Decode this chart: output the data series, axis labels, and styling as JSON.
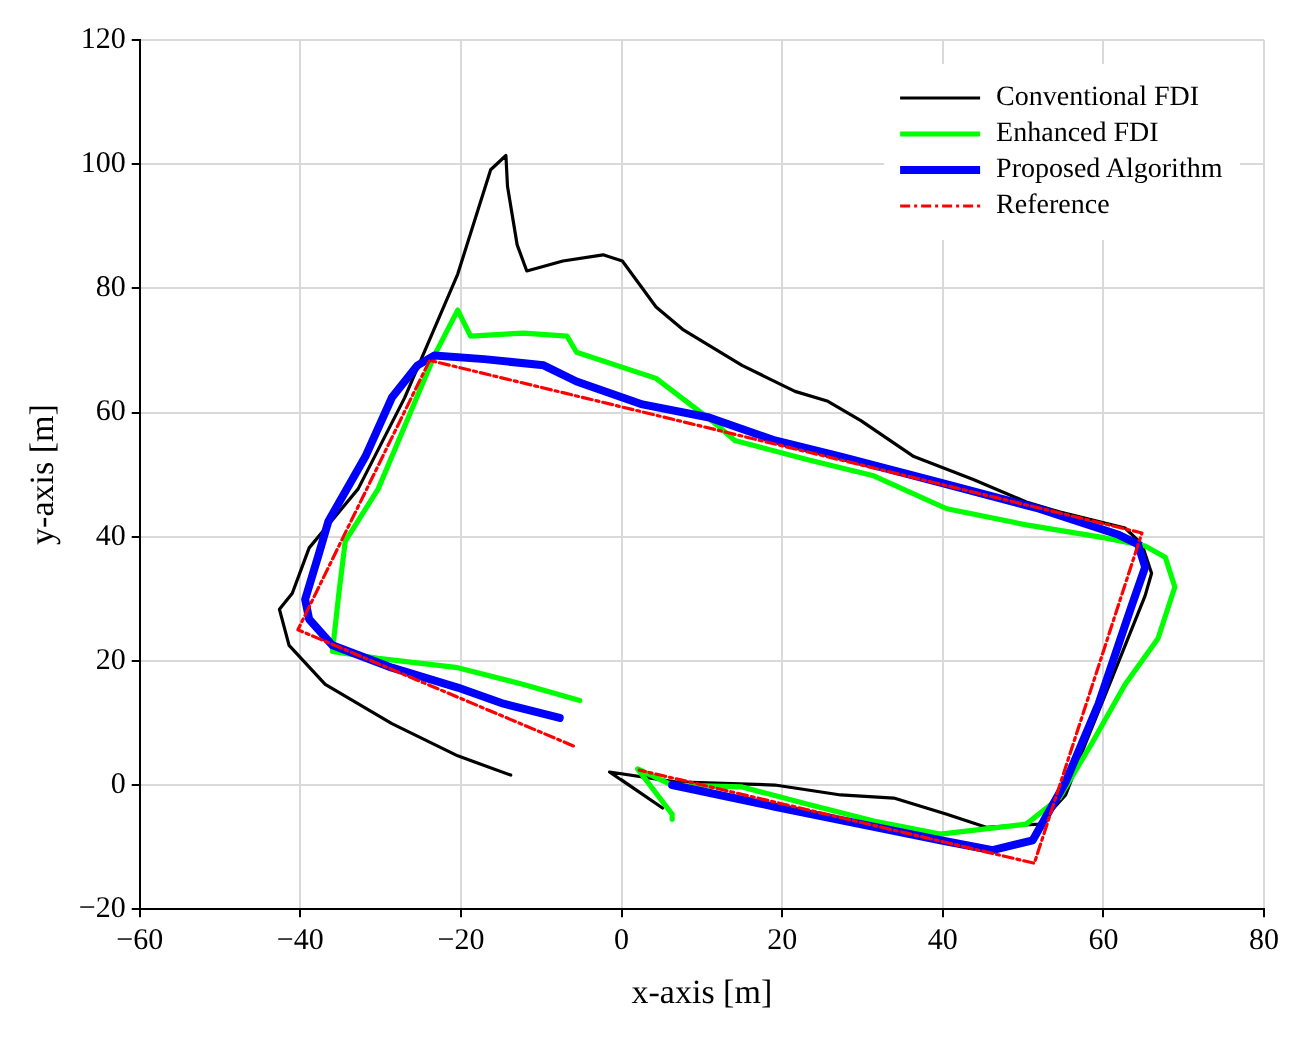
{
  "chart_data": {
    "type": "line",
    "xlabel": "x-axis [m]",
    "ylabel": "y-axis [m]",
    "xlim": [
      -60,
      80
    ],
    "xticks": [
      -60,
      -40,
      -20,
      0,
      20,
      40,
      60,
      80
    ],
    "ylim": [
      -20,
      120
    ],
    "yticks": [
      -20,
      0,
      20,
      40,
      60,
      80,
      100,
      120
    ],
    "grid": true,
    "legend": "top right",
    "marker": "none",
    "series": [
      {
        "name": "Conventional FDI",
        "color": "#000000",
        "line_style": "solid",
        "x": [
          -13.8,
          -20.4,
          -28.6,
          -36.9,
          -41.4,
          -42.6,
          -41,
          -38.9,
          -32.8,
          -27,
          -20.4,
          -16.3,
          -14.4,
          -14.2,
          -13,
          -11.8,
          -7.3,
          -2.3,
          0.1,
          4.3,
          7.6,
          15,
          21.6,
          25.7,
          29.8,
          36.4,
          43.8,
          50.4,
          54.5,
          62.7,
          64.8,
          66,
          65.2,
          61.1,
          57.8,
          55.3,
          52,
          45.4,
          40.5,
          33.9,
          27.3,
          19.1,
          6.7,
          -1.5,
          5.1,
          -0.1
        ],
        "values": [
          1.6,
          4.7,
          9.9,
          16.2,
          22.5,
          28.3,
          30.9,
          38.2,
          47.7,
          62.4,
          82.3,
          99.1,
          101.4,
          96.4,
          87,
          82.8,
          84.4,
          85.4,
          84.4,
          77,
          73.4,
          67.6,
          63.4,
          61.8,
          58.7,
          52.9,
          49.2,
          45.6,
          44,
          41.4,
          38.8,
          34.1,
          30.5,
          17.3,
          6.8,
          -1.6,
          -6.3,
          -6.8,
          -4.7,
          -2.1,
          -1.6,
          0,
          0.5,
          2.1,
          -3.7,
          0.9
        ]
      },
      {
        "name": "Enhanced FDI",
        "color": "#00ff00",
        "line_style": "solid",
        "x": [
          -5.2,
          -12.2,
          -20.4,
          -30.3,
          -36,
          -35.2,
          -34.4,
          -30.3,
          -26.2,
          -23.3,
          -20.4,
          -18.8,
          -12.2,
          -6.8,
          -5.6,
          4.3,
          11.7,
          14.1,
          23.2,
          31.4,
          40.5,
          50.4,
          60.2,
          65.2,
          67.7,
          68.9,
          66.8,
          62.7,
          58.6,
          54.5,
          50.4,
          39.7,
          31.4,
          23.2,
          15,
          6.3,
          2,
          6.3,
          6.3
        ],
        "values": [
          13.6,
          16.2,
          18.9,
          20.4,
          21.5,
          30.9,
          39.3,
          47.7,
          60.3,
          69.2,
          76.5,
          72.3,
          72.8,
          72.3,
          69.7,
          65.5,
          58.2,
          55.5,
          52.4,
          49.8,
          44.5,
          41.9,
          39.8,
          38.5,
          36.7,
          31.9,
          23.6,
          16.2,
          6.8,
          -2.1,
          -6.3,
          -7.9,
          -5.8,
          -3.1,
          -0.3,
          0,
          2.6,
          -4.7,
          -5.5
        ]
      },
      {
        "name": "Proposed Algorithm",
        "color": "#0000ff",
        "line_style": "solid",
        "x": [
          -7.7,
          -14.7,
          -20.4,
          -28.6,
          -36,
          -38.9,
          -39.4,
          -37.7,
          -36.5,
          -31.9,
          -28.6,
          -25.4,
          -23.3,
          -17.1,
          -9.7,
          -5.6,
          2.6,
          10.9,
          19.1,
          27.3,
          39.7,
          52,
          61.9,
          64.3,
          65.2,
          63.5,
          59.4,
          55.3,
          51.2,
          46.2,
          39.7,
          19.1,
          6.3
        ],
        "values": [
          10.8,
          13.1,
          15.7,
          18.9,
          22.5,
          26.7,
          29.9,
          37.2,
          42.5,
          52.9,
          62.4,
          67.6,
          69.2,
          68.6,
          67.6,
          65,
          61.3,
          59.2,
          55.5,
          52.9,
          48.7,
          44.5,
          40.3,
          38.8,
          35.1,
          28.8,
          13.1,
          0.5,
          -8.9,
          -10.5,
          -8.9,
          -3.5,
          0
        ]
      },
      {
        "name": "Reference",
        "color": "#ff0000",
        "line_style": "dashed",
        "x": [
          -6,
          -40.3,
          -23.9,
          64.8,
          51.4,
          2.2
        ],
        "values": [
          6.3,
          25,
          68.4,
          40.6,
          -12.6,
          2.4
        ]
      }
    ]
  }
}
